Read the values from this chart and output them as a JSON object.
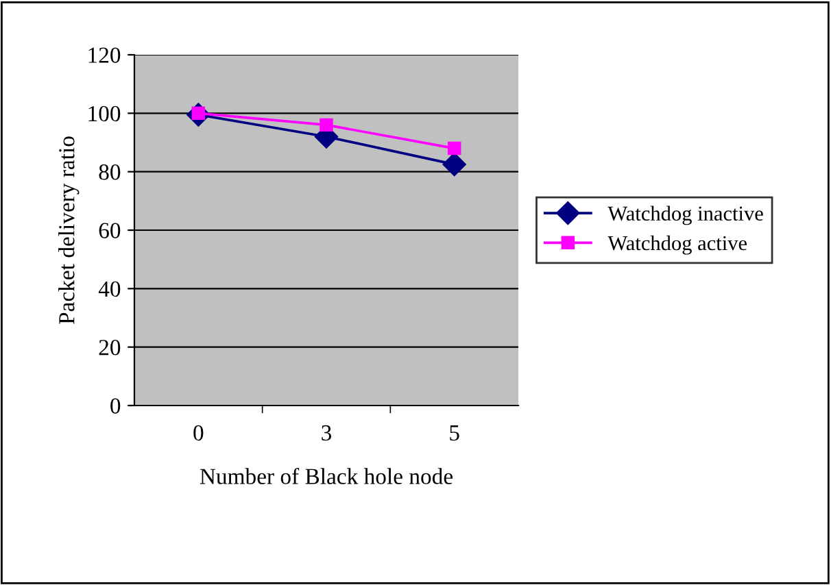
{
  "chart_data": {
    "type": "line",
    "xlabel": "Number of Black hole node",
    "ylabel": "Packet delivery ratio",
    "categories": [
      "0",
      "3",
      "5"
    ],
    "series": [
      {
        "name": "Watchdog inactive",
        "color": "#000080",
        "values": [
          99.5,
          92,
          82.5
        ],
        "marker": "diamond"
      },
      {
        "name": "Watchdog active",
        "color": "#ff00ff",
        "values": [
          100,
          96,
          88
        ],
        "marker": "square"
      }
    ],
    "ylim": [
      0,
      120
    ],
    "yticks": [
      0,
      20,
      40,
      60,
      80,
      100,
      120
    ],
    "grid": "y",
    "legend": "right",
    "line_style": "solid"
  }
}
